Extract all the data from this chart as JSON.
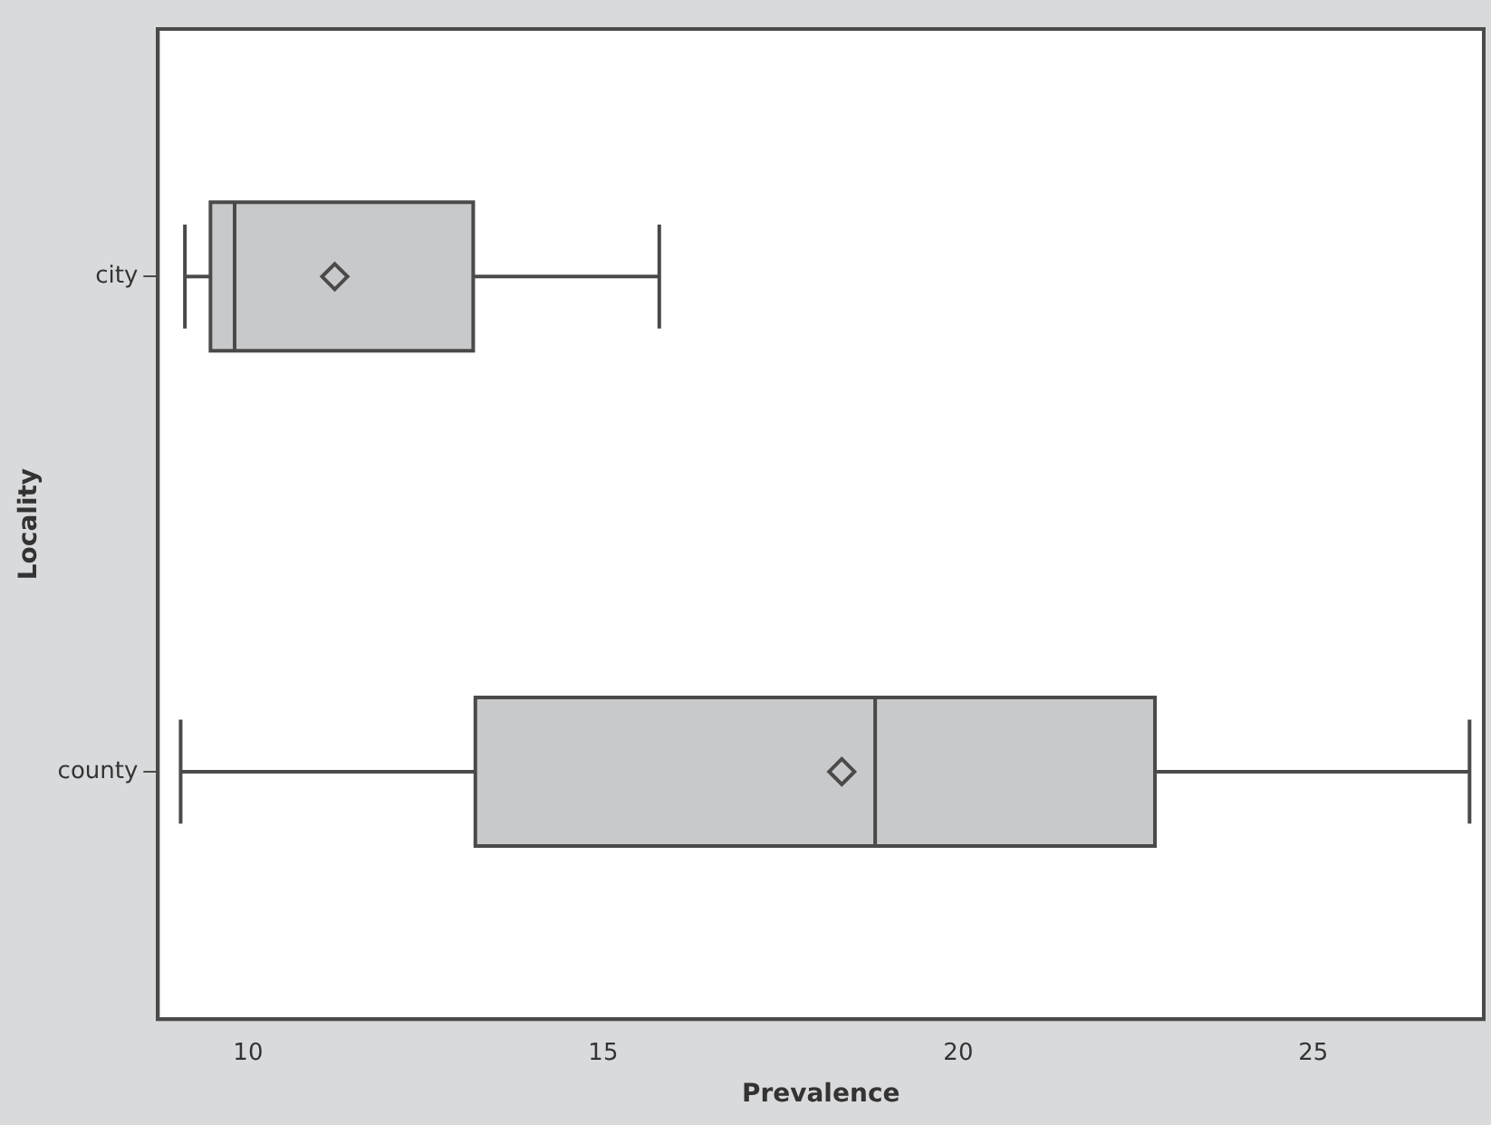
{
  "chart_data": {
    "type": "box",
    "orientation": "horizontal",
    "xlabel": "Prevalence",
    "ylabel": "Locality",
    "categories": [
      "city",
      "county"
    ],
    "boxes": [
      {
        "low": 9.11,
        "q1": 9.47,
        "median": 9.81,
        "q3": 13.17,
        "high": 15.79,
        "mean": 11.22
      },
      {
        "low": 9.05,
        "q1": 13.2,
        "median": 18.83,
        "q3": 22.77,
        "high": 27.2,
        "mean": 18.36
      }
    ],
    "color": "#c8c9cb",
    "marker": "diamond",
    "xlim": [
      8.73,
      27.4
    ],
    "xticks": [
      10,
      15,
      20,
      25
    ],
    "grid": false,
    "legend": false
  }
}
